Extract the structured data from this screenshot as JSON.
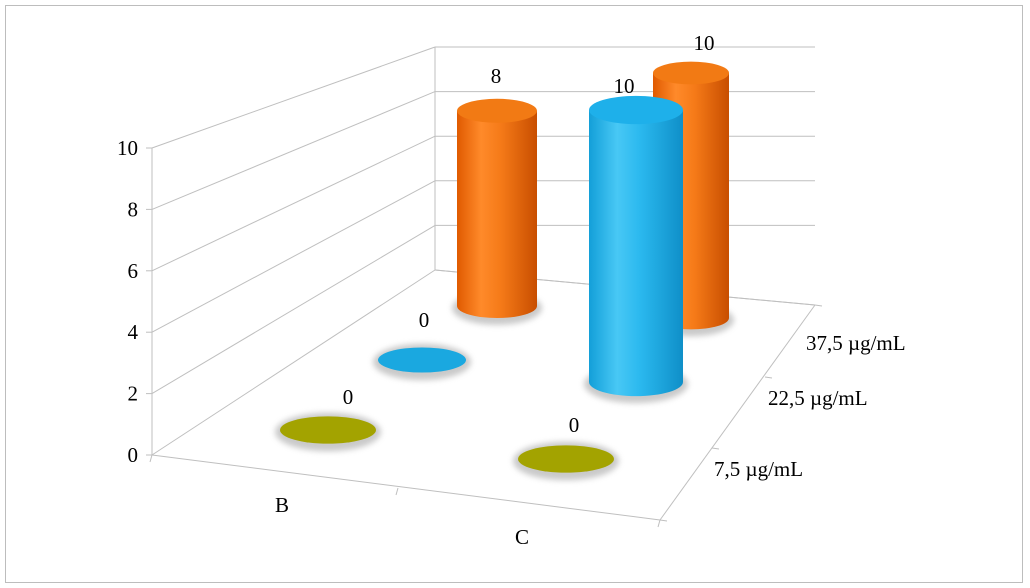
{
  "chart_data": {
    "type": "bar",
    "subtype": "3d-cylinder",
    "categories": [
      "B",
      "C"
    ],
    "series": [
      {
        "name": "7,5 µg/mL",
        "values": [
          0,
          0
        ],
        "color": "#a0a000"
      },
      {
        "name": "22,5 µg/mL",
        "values": [
          0,
          10
        ],
        "color": "#1ab0e8"
      },
      {
        "name": "37,5 µg/mL",
        "values": [
          8,
          10
        ],
        "color": "#f07010"
      }
    ],
    "yticks": [
      "0",
      "2",
      "4",
      "6",
      "8",
      "10"
    ],
    "ylim": [
      0,
      10
    ],
    "data_labels": [
      [
        "0",
        "0"
      ],
      [
        "0",
        "10"
      ],
      [
        "8",
        "10"
      ]
    ],
    "title": "",
    "xlabel": "",
    "ylabel": "",
    "grid": true,
    "legend": "none"
  }
}
